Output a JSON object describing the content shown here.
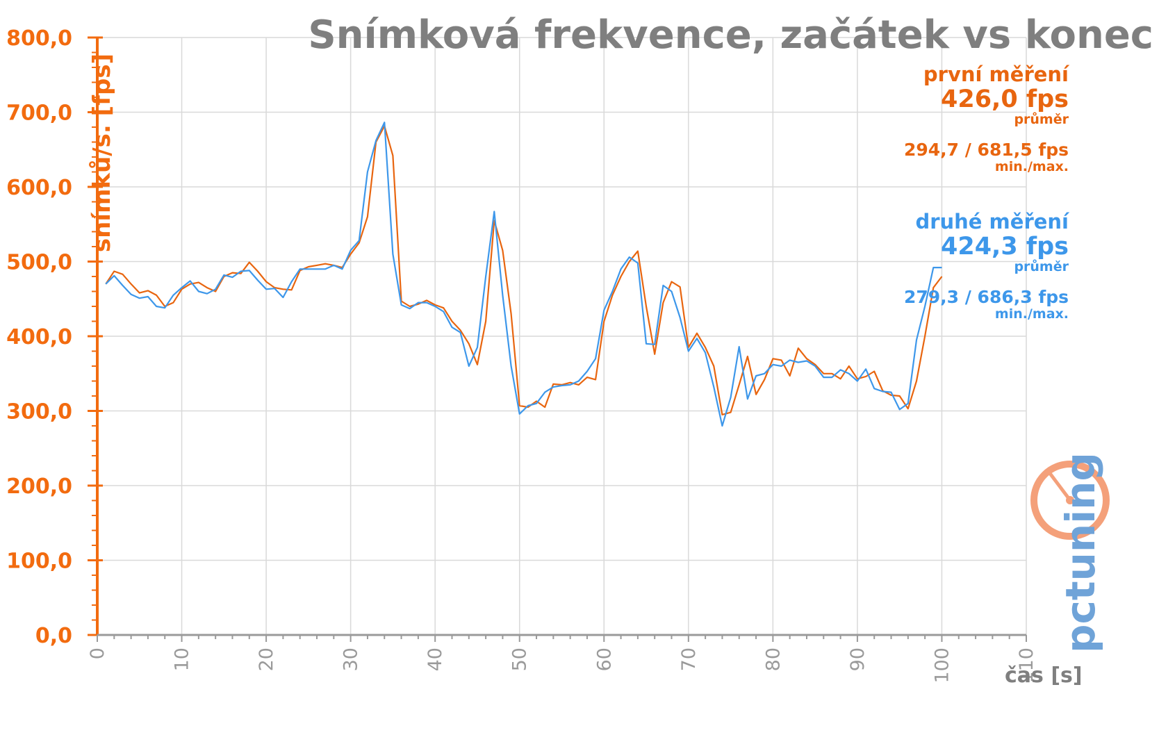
{
  "header": {
    "title": "Snímková frekvence, začátek vs konec"
  },
  "axes": {
    "ylabel": "snímků/s. [fps]",
    "xlabel": "čas [s]"
  },
  "stats": {
    "first": {
      "name": "první měření",
      "avg": "426,0 fps",
      "avg_label": "průměr",
      "minmax": "294,7 / 681,5 fps",
      "minmax_label": "min./max."
    },
    "second": {
      "name": "druhé měření",
      "avg": "424,3 fps",
      "avg_label": "průměr",
      "minmax": "279,3 / 686,3 fps",
      "minmax_label": "min./max."
    }
  },
  "logo": {
    "text": "pctuning"
  },
  "colors": {
    "first": "#e8650f",
    "second": "#3d97ea",
    "axis": "#f26b0f",
    "grid": "#d9d9d9",
    "xtick": "#9a9a9a"
  },
  "chart_data": {
    "type": "line",
    "title": "Snímková frekvence, začátek vs konec",
    "xlabel": "čas [s]",
    "ylabel": "snímků/s. [fps]",
    "xlim": [
      0,
      110
    ],
    "ylim": [
      0,
      800
    ],
    "x_ticks": [
      "0",
      "10",
      "20",
      "30",
      "40",
      "50",
      "60",
      "70",
      "80",
      "90",
      "100",
      "110"
    ],
    "y_ticks": [
      "0,0",
      "100,0",
      "200,0",
      "300,0",
      "400,0",
      "500,0",
      "600,0",
      "700,0",
      "800,0"
    ],
    "grid": true,
    "series": [
      {
        "name": "první měření",
        "color": "#e8650f",
        "x": [
          1,
          2,
          3,
          4,
          5,
          6,
          7,
          8,
          9,
          10,
          11,
          12,
          13,
          14,
          15,
          16,
          17,
          18,
          19,
          20,
          21,
          22,
          23,
          24,
          25,
          26,
          27,
          28,
          29,
          30,
          31,
          32,
          33,
          34,
          35,
          36,
          37,
          38,
          39,
          40,
          41,
          42,
          43,
          44,
          45,
          46,
          47,
          48,
          49,
          50,
          51,
          52,
          53,
          54,
          55,
          56,
          57,
          58,
          59,
          60,
          61,
          62,
          63,
          64,
          65,
          66,
          67,
          68,
          69,
          70,
          71,
          72,
          73,
          74,
          75,
          76,
          77,
          78,
          79,
          80,
          81,
          82,
          83,
          84,
          85,
          86,
          87,
          88,
          89,
          90,
          91,
          92,
          93,
          94,
          95,
          96,
          97,
          98,
          99,
          100
        ],
        "values": [
          470,
          487,
          483,
          470,
          458,
          461,
          455,
          440,
          445,
          463,
          470,
          472,
          465,
          460,
          480,
          485,
          484,
          499,
          487,
          473,
          465,
          463,
          462,
          488,
          493,
          495,
          497,
          495,
          492,
          510,
          525,
          560,
          660,
          681.5,
          642,
          447,
          440,
          443,
          448,
          442,
          438,
          420,
          408,
          390,
          362,
          420,
          555,
          515,
          430,
          307,
          305,
          313,
          305,
          336,
          335,
          338,
          335,
          345,
          342,
          420,
          455,
          480,
          500,
          514,
          440,
          376,
          445,
          473,
          466,
          385,
          404,
          385,
          360,
          295,
          298,
          335,
          373,
          322,
          342,
          370,
          368,
          347,
          384,
          370,
          362,
          350,
          350,
          343,
          360,
          343,
          346,
          353,
          327,
          321,
          320,
          303,
          340,
          400,
          465,
          480
        ],
        "min": 294.7,
        "max": 681.5,
        "avg": 426.0
      },
      {
        "name": "druhé měření",
        "color": "#3d97ea",
        "x": [
          1,
          2,
          3,
          4,
          5,
          6,
          7,
          8,
          9,
          10,
          11,
          12,
          13,
          14,
          15,
          16,
          17,
          18,
          19,
          20,
          21,
          22,
          23,
          24,
          25,
          26,
          27,
          28,
          29,
          30,
          31,
          32,
          33,
          34,
          35,
          36,
          37,
          38,
          39,
          40,
          41,
          42,
          43,
          44,
          45,
          46,
          47,
          48,
          49,
          50,
          51,
          52,
          53,
          54,
          55,
          56,
          57,
          58,
          59,
          60,
          61,
          62,
          63,
          64,
          65,
          66,
          67,
          68,
          69,
          70,
          71,
          72,
          73,
          74,
          75,
          76,
          77,
          78,
          79,
          80,
          81,
          82,
          83,
          84,
          85,
          86,
          87,
          88,
          89,
          90,
          91,
          92,
          93,
          94,
          95,
          96,
          97,
          98,
          99,
          100
        ],
        "values": [
          470,
          481,
          468,
          456,
          451,
          453,
          440,
          438,
          455,
          465,
          474,
          460,
          457,
          463,
          482,
          479,
          487,
          488,
          475,
          463,
          464,
          452,
          473,
          490,
          490,
          490,
          490,
          495,
          490,
          515,
          528,
          620,
          662,
          686.3,
          510,
          442,
          437,
          445,
          445,
          440,
          433,
          412,
          405,
          360,
          385,
          480,
          567,
          455,
          360,
          296,
          307,
          310,
          325,
          332,
          334,
          335,
          340,
          353,
          370,
          435,
          460,
          490,
          506,
          498,
          390,
          389,
          468,
          460,
          425,
          380,
          397,
          378,
          332,
          280,
          318,
          386,
          316,
          347,
          350,
          362,
          360,
          368,
          365,
          367,
          360,
          345,
          345,
          355,
          350,
          340,
          356,
          330,
          326,
          325,
          302,
          310,
          395,
          440,
          492,
          492
        ],
        "min": 279.3,
        "max": 686.3,
        "avg": 424.3
      }
    ]
  }
}
